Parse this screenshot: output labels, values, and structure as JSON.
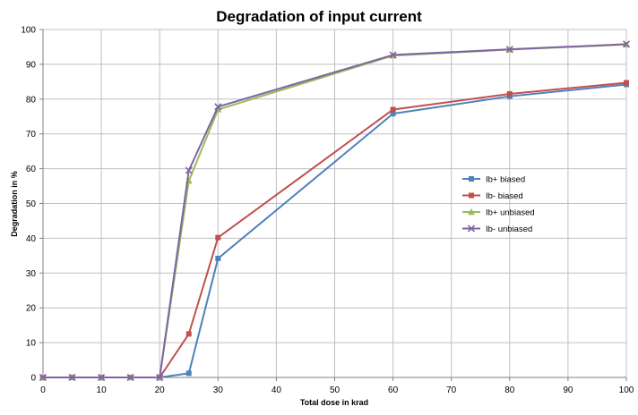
{
  "chart_data": {
    "type": "line",
    "title": "Degradation of input current",
    "xlabel": "Total dose in krad",
    "ylabel": "Degradation in %",
    "xlim": [
      0,
      100
    ],
    "ylim": [
      0,
      100
    ],
    "xticks": [
      0,
      10,
      20,
      30,
      40,
      50,
      60,
      70,
      80,
      90,
      100
    ],
    "yticks": [
      0,
      10,
      20,
      30,
      40,
      50,
      60,
      70,
      80,
      90,
      100
    ],
    "grid": true,
    "legend_position": "right",
    "series": [
      {
        "name": "Ib+  biased",
        "color": "#4f81bd",
        "marker": "square",
        "x": [
          0,
          5,
          10,
          15,
          20,
          25,
          30,
          60,
          80,
          100
        ],
        "y": [
          0,
          0,
          0,
          0,
          0,
          1.2,
          34.2,
          75.8,
          80.8,
          84.2
        ]
      },
      {
        "name": "Ib-  biased",
        "color": "#c0504d",
        "marker": "square",
        "x": [
          0,
          5,
          10,
          15,
          20,
          25,
          30,
          60,
          80,
          100
        ],
        "y": [
          0,
          0,
          0,
          0,
          0,
          12.5,
          40.2,
          77.0,
          81.5,
          84.7
        ]
      },
      {
        "name": "Ib+  unbiased",
        "color": "#9bbb59",
        "marker": "triangle",
        "x": [
          0,
          5,
          10,
          15,
          20,
          25,
          30,
          60,
          80,
          100
        ],
        "y": [
          0,
          0,
          0,
          0,
          0,
          56.5,
          77.0,
          92.5,
          94.2,
          95.7
        ]
      },
      {
        "name": "Ib-  unbiased",
        "color": "#8064a2",
        "marker": "x",
        "x": [
          0,
          5,
          10,
          15,
          20,
          25,
          30,
          60,
          80,
          100
        ],
        "y": [
          0,
          0,
          0,
          0,
          0,
          59.5,
          77.8,
          92.7,
          94.3,
          95.8
        ]
      }
    ]
  }
}
